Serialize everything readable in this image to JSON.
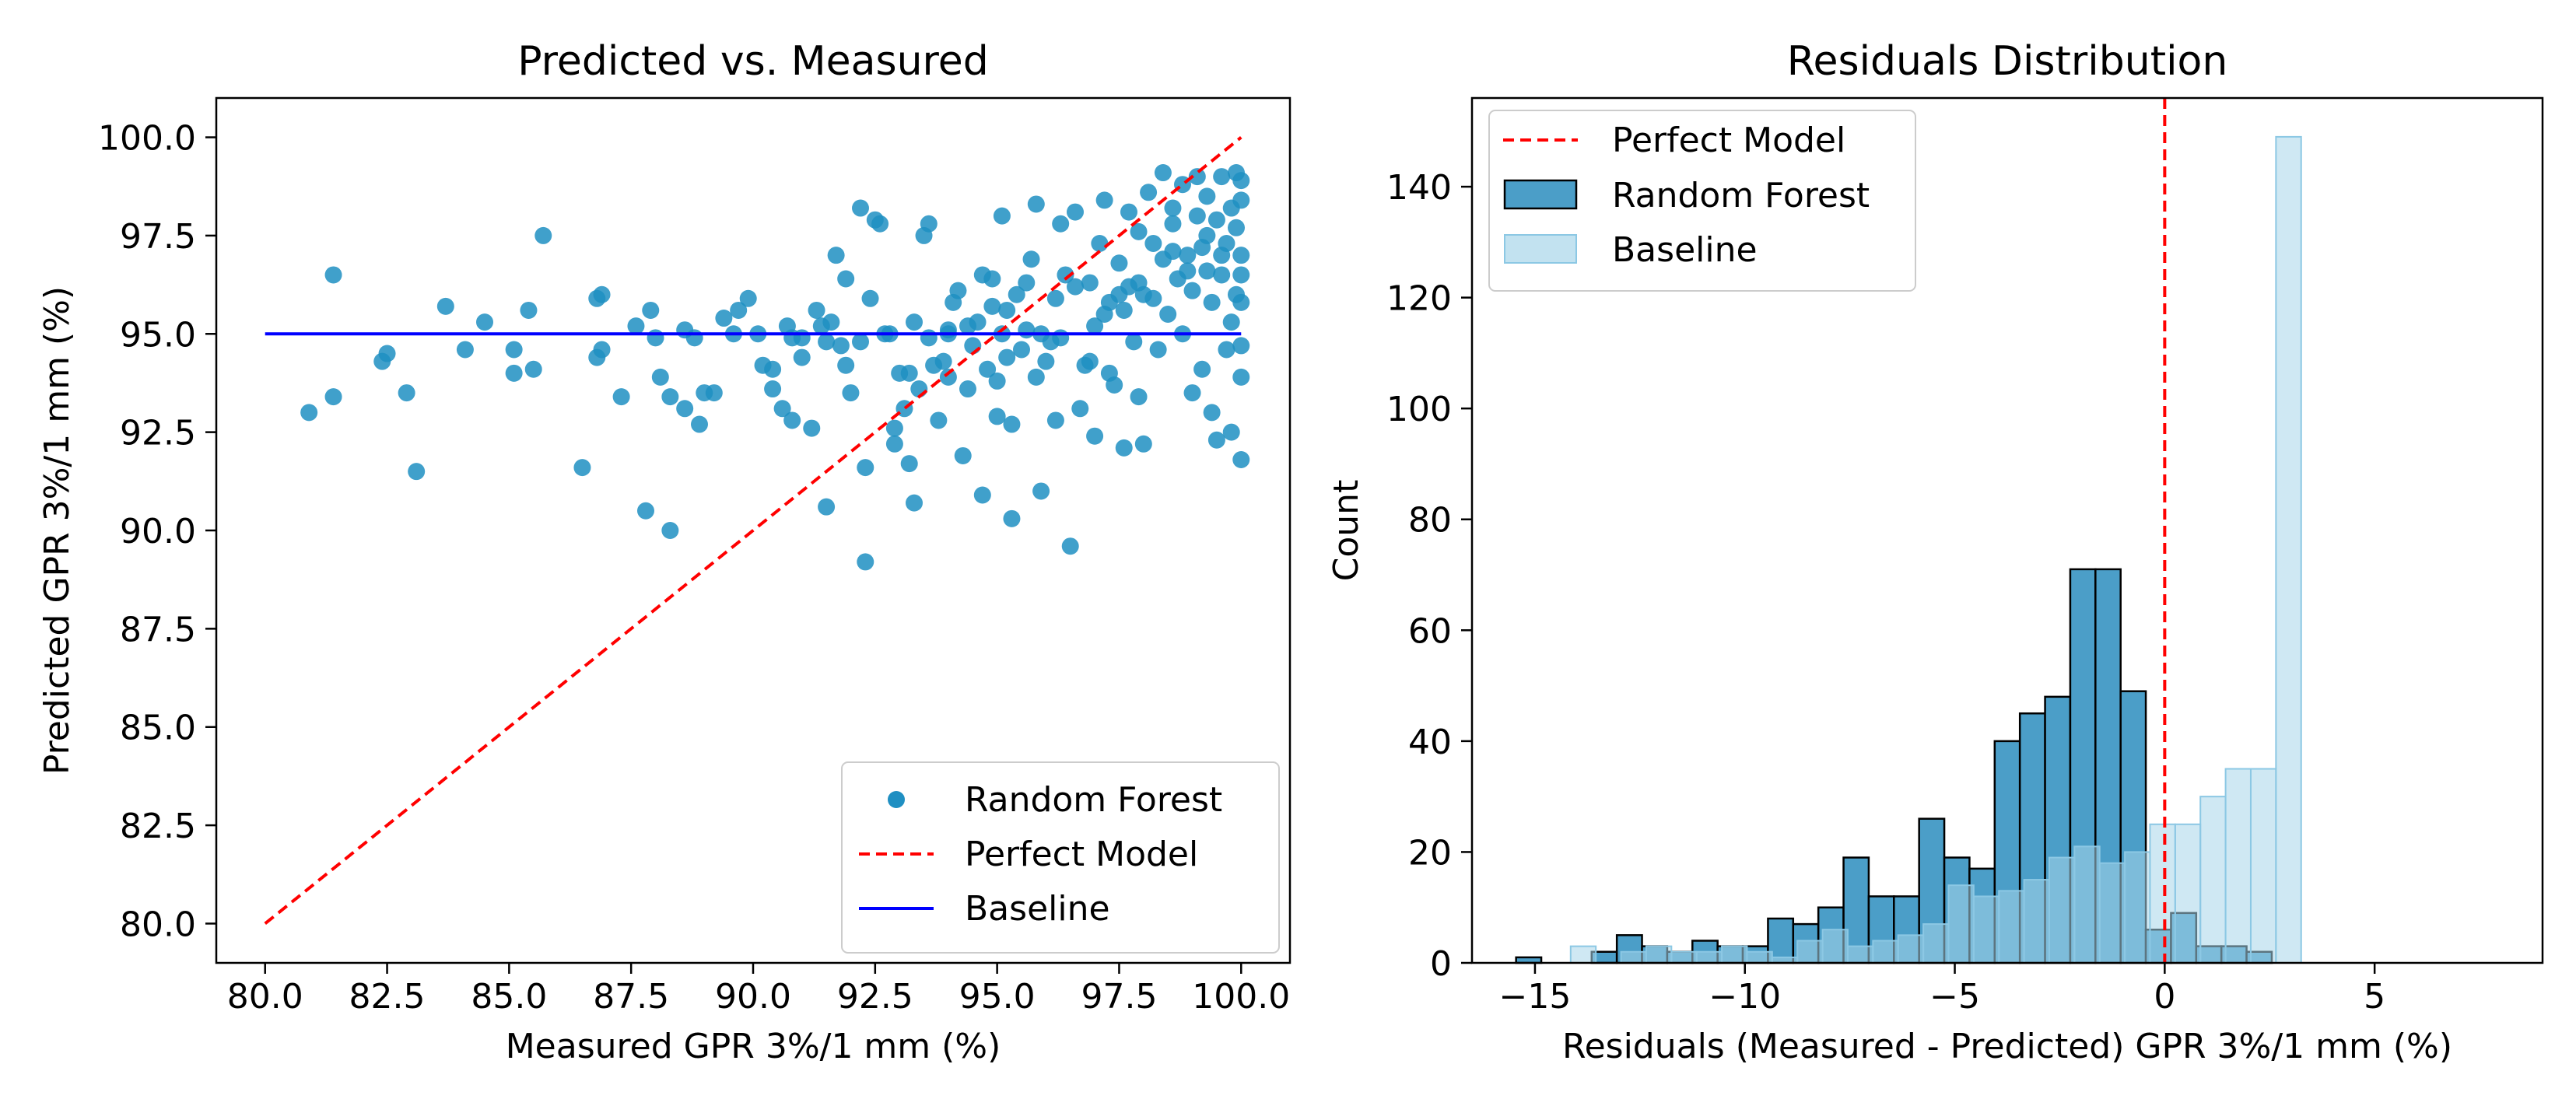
{
  "chart_data": [
    {
      "type": "scatter",
      "title": "Predicted vs. Measured",
      "xlabel": "Measured GPR 3%/1 mm (%)",
      "ylabel": "Predicted GPR 3%/1 mm (%)",
      "xlim": [
        79,
        101
      ],
      "ylim": [
        79,
        101
      ],
      "xticks": [
        "80.0",
        "82.5",
        "85.0",
        "87.5",
        "90.0",
        "92.5",
        "95.0",
        "97.5",
        "100.0"
      ],
      "xtick_values": [
        80,
        82.5,
        85,
        87.5,
        90,
        92.5,
        95,
        97.5,
        100
      ],
      "yticks": [
        "80.0",
        "82.5",
        "85.0",
        "87.5",
        "90.0",
        "92.5",
        "95.0",
        "97.5",
        "100.0"
      ],
      "ytick_values": [
        80,
        82.5,
        85,
        87.5,
        90,
        92.5,
        95,
        97.5,
        100
      ],
      "legend": {
        "position": "lower-right",
        "entries": [
          "Random Forest",
          "Perfect Model",
          "Baseline"
        ]
      },
      "series": [
        {
          "name": "Random Forest",
          "kind": "scatter",
          "color": "#1f8fc2",
          "points": [
            [
              80.9,
              93.0
            ],
            [
              81.4,
              96.5
            ],
            [
              81.4,
              93.4
            ],
            [
              82.4,
              94.3
            ],
            [
              82.5,
              94.5
            ],
            [
              82.9,
              93.5
            ],
            [
              83.1,
              91.5
            ],
            [
              83.7,
              95.7
            ],
            [
              84.1,
              94.6
            ],
            [
              84.5,
              95.3
            ],
            [
              85.1,
              94.0
            ],
            [
              85.1,
              94.6
            ],
            [
              85.4,
              95.6
            ],
            [
              85.5,
              94.1
            ],
            [
              85.7,
              97.5
            ],
            [
              86.5,
              91.6
            ],
            [
              86.8,
              95.9
            ],
            [
              86.8,
              94.4
            ],
            [
              86.9,
              94.6
            ],
            [
              86.9,
              96.0
            ],
            [
              87.3,
              93.4
            ],
            [
              87.6,
              95.2
            ],
            [
              87.8,
              90.5
            ],
            [
              87.9,
              95.6
            ],
            [
              88.0,
              94.9
            ],
            [
              88.1,
              93.9
            ],
            [
              88.3,
              93.4
            ],
            [
              88.3,
              90.0
            ],
            [
              88.6,
              93.1
            ],
            [
              88.6,
              95.1
            ],
            [
              88.9,
              92.7
            ],
            [
              89.0,
              93.5
            ],
            [
              89.2,
              93.5
            ],
            [
              89.4,
              95.4
            ],
            [
              89.7,
              95.6
            ],
            [
              89.9,
              95.9
            ],
            [
              90.1,
              95.0
            ],
            [
              90.4,
              94.1
            ],
            [
              90.4,
              93.6
            ],
            [
              90.6,
              93.1
            ],
            [
              90.7,
              95.2
            ],
            [
              90.8,
              92.8
            ],
            [
              91.0,
              94.9
            ],
            [
              91.0,
              94.4
            ],
            [
              91.2,
              92.6
            ],
            [
              91.3,
              95.6
            ],
            [
              91.5,
              94.8
            ],
            [
              91.5,
              90.6
            ],
            [
              91.6,
              95.3
            ],
            [
              91.7,
              97.0
            ],
            [
              91.8,
              94.7
            ],
            [
              91.9,
              94.2
            ],
            [
              91.9,
              96.4
            ],
            [
              92.0,
              93.5
            ],
            [
              92.2,
              98.2
            ],
            [
              92.3,
              91.6
            ],
            [
              92.3,
              89.2
            ],
            [
              92.4,
              95.9
            ],
            [
              92.5,
              97.9
            ],
            [
              92.6,
              97.8
            ],
            [
              92.7,
              95.0
            ],
            [
              92.9,
              92.6
            ],
            [
              92.9,
              92.2
            ],
            [
              93.0,
              94.0
            ],
            [
              93.1,
              93.1
            ],
            [
              93.2,
              91.7
            ],
            [
              93.3,
              90.7
            ],
            [
              93.3,
              95.3
            ],
            [
              93.4,
              93.6
            ],
            [
              93.5,
              97.5
            ],
            [
              93.6,
              97.8
            ],
            [
              93.7,
              94.2
            ],
            [
              93.8,
              92.8
            ],
            [
              93.9,
              94.3
            ],
            [
              94.0,
              93.9
            ],
            [
              94.0,
              95.1
            ],
            [
              94.1,
              95.8
            ],
            [
              94.2,
              96.1
            ],
            [
              94.3,
              91.9
            ],
            [
              94.4,
              93.6
            ],
            [
              94.5,
              94.7
            ],
            [
              94.6,
              95.3
            ],
            [
              94.7,
              96.5
            ],
            [
              94.7,
              90.9
            ],
            [
              94.9,
              95.7
            ],
            [
              94.9,
              96.4
            ],
            [
              95.0,
              92.9
            ],
            [
              95.0,
              93.8
            ],
            [
              95.1,
              98.0
            ],
            [
              95.1,
              95.0
            ],
            [
              95.2,
              94.4
            ],
            [
              95.3,
              92.7
            ],
            [
              95.3,
              90.3
            ],
            [
              95.4,
              96.0
            ],
            [
              95.5,
              94.6
            ],
            [
              95.6,
              95.1
            ],
            [
              95.7,
              96.9
            ],
            [
              95.8,
              93.9
            ],
            [
              95.8,
              98.3
            ],
            [
              95.9,
              91.0
            ],
            [
              96.0,
              94.3
            ],
            [
              96.1,
              94.8
            ],
            [
              96.2,
              95.9
            ],
            [
              96.2,
              92.8
            ],
            [
              96.3,
              97.8
            ],
            [
              96.4,
              96.5
            ],
            [
              96.5,
              89.6
            ],
            [
              96.6,
              98.1
            ],
            [
              96.7,
              93.1
            ],
            [
              96.8,
              94.2
            ],
            [
              96.9,
              96.3
            ],
            [
              97.0,
              95.2
            ],
            [
              97.0,
              92.4
            ],
            [
              97.1,
              97.3
            ],
            [
              97.2,
              98.4
            ],
            [
              97.3,
              95.8
            ],
            [
              97.3,
              94.0
            ],
            [
              97.4,
              93.7
            ],
            [
              97.5,
              96.8
            ],
            [
              97.6,
              92.1
            ],
            [
              97.6,
              95.6
            ],
            [
              97.7,
              98.1
            ],
            [
              97.7,
              96.2
            ],
            [
              97.8,
              94.8
            ],
            [
              97.9,
              93.4
            ],
            [
              97.9,
              97.6
            ],
            [
              98.0,
              92.2
            ],
            [
              98.0,
              96.0
            ],
            [
              98.1,
              98.6
            ],
            [
              98.2,
              97.3
            ],
            [
              98.3,
              94.6
            ],
            [
              98.4,
              99.1
            ],
            [
              98.4,
              96.9
            ],
            [
              98.5,
              95.5
            ],
            [
              98.6,
              98.2
            ],
            [
              98.6,
              97.8
            ],
            [
              98.7,
              96.4
            ],
            [
              98.8,
              95.0
            ],
            [
              98.8,
              98.8
            ],
            [
              98.9,
              97.0
            ],
            [
              99.0,
              96.1
            ],
            [
              99.0,
              93.5
            ],
            [
              99.1,
              99.0
            ],
            [
              99.1,
              98.0
            ],
            [
              99.2,
              97.2
            ],
            [
              99.2,
              94.1
            ],
            [
              99.3,
              96.6
            ],
            [
              99.3,
              98.5
            ],
            [
              99.4,
              95.8
            ],
            [
              99.4,
              93.0
            ],
            [
              99.5,
              97.9
            ],
            [
              99.5,
              92.3
            ],
            [
              99.6,
              96.5
            ],
            [
              99.6,
              99.0
            ],
            [
              99.7,
              94.6
            ],
            [
              99.7,
              97.3
            ],
            [
              99.8,
              98.2
            ],
            [
              99.8,
              95.3
            ],
            [
              99.8,
              92.5
            ],
            [
              99.9,
              96.0
            ],
            [
              99.9,
              97.7
            ],
            [
              100.0,
              98.9
            ],
            [
              100.0,
              97.0
            ],
            [
              100.0,
              95.8
            ],
            [
              100.0,
              94.7
            ],
            [
              100.0,
              93.9
            ],
            [
              100.0,
              91.8
            ],
            [
              100.0,
              96.5
            ],
            [
              100.0,
              98.4
            ],
            [
              99.9,
              99.1
            ],
            [
              99.6,
              97.0
            ],
            [
              99.3,
              97.5
            ],
            [
              98.9,
              96.6
            ],
            [
              98.6,
              97.1
            ],
            [
              98.2,
              95.9
            ],
            [
              97.9,
              96.3
            ],
            [
              97.5,
              96.0
            ],
            [
              97.2,
              95.5
            ],
            [
              96.9,
              94.3
            ],
            [
              96.6,
              96.2
            ],
            [
              96.3,
              94.9
            ],
            [
              95.9,
              95.0
            ],
            [
              95.6,
              96.3
            ],
            [
              95.2,
              95.6
            ],
            [
              94.8,
              94.1
            ],
            [
              94.4,
              95.2
            ],
            [
              94.0,
              95.0
            ],
            [
              93.6,
              94.9
            ],
            [
              93.2,
              94.0
            ],
            [
              92.8,
              95.0
            ],
            [
              92.2,
              94.8
            ],
            [
              91.4,
              95.2
            ],
            [
              90.8,
              94.9
            ],
            [
              90.2,
              94.2
            ],
            [
              89.6,
              95.0
            ],
            [
              88.8,
              94.9
            ]
          ]
        },
        {
          "name": "Perfect Model",
          "kind": "line",
          "style": "dashed",
          "color": "#ff0000",
          "x": [
            80,
            100
          ],
          "y": [
            80,
            100
          ]
        },
        {
          "name": "Baseline",
          "kind": "line",
          "style": "solid",
          "color": "#0000ff",
          "x": [
            80,
            100
          ],
          "y": [
            95,
            95
          ]
        }
      ]
    },
    {
      "type": "histogram",
      "title": "Residuals Distribution",
      "xlabel": "Residuals (Measured - Predicted) GPR 3%/1 mm (%)",
      "ylabel": "Count",
      "xlim": [
        -16.5,
        9.0
      ],
      "ylim": [
        0,
        156
      ],
      "xticks": [
        "−15",
        "−10",
        "−5",
        "0",
        "5"
      ],
      "xtick_values": [
        -15,
        -10,
        -5,
        0,
        5
      ],
      "yticks": [
        "0",
        "20",
        "40",
        "60",
        "80",
        "100",
        "120",
        "140"
      ],
      "ytick_values": [
        0,
        20,
        40,
        60,
        80,
        100,
        120,
        140
      ],
      "legend": {
        "position": "top-left",
        "entries": [
          "Perfect Model",
          "Random Forest",
          "Baseline"
        ]
      },
      "vline": {
        "name": "Perfect Model",
        "x": 0,
        "color": "#ff0000",
        "style": "dashed"
      },
      "series": [
        {
          "name": "Random Forest",
          "color": "#4b9ec8",
          "edgecolor": "#000000",
          "bin_start": -15.45,
          "bin_width": 0.6,
          "counts": [
            1,
            0,
            0,
            2,
            5,
            3,
            2,
            4,
            3,
            3,
            8,
            7,
            10,
            19,
            12,
            12,
            26,
            19,
            17,
            40,
            45,
            48,
            71,
            71,
            49,
            6,
            9,
            3,
            3,
            2
          ]
        },
        {
          "name": "Baseline",
          "color": "#a8d5ea",
          "edgecolor": "#8cc8e4",
          "bin_start": -14.15,
          "bin_width": 0.6,
          "counts": [
            3,
            0,
            2,
            3,
            2,
            2,
            3,
            2,
            1,
            4,
            6,
            3,
            4,
            5,
            7,
            14,
            12,
            13,
            15,
            19,
            21,
            18,
            20,
            25,
            25,
            30,
            35,
            35,
            149
          ]
        }
      ]
    }
  ]
}
